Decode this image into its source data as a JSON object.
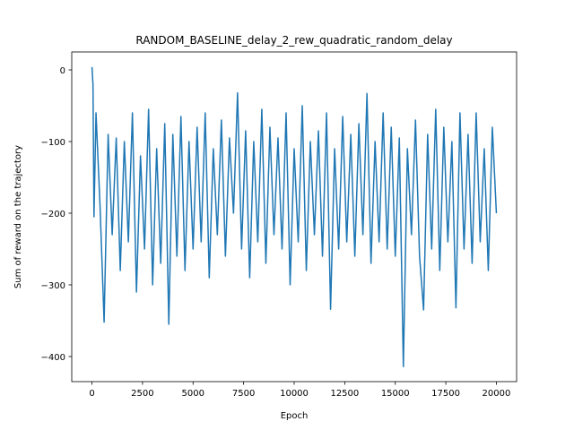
{
  "chart_data": {
    "type": "line",
    "title": "RANDOM_BASELINE_delay_2_rew_quadratic_random_delay",
    "xlabel": "Epoch",
    "ylabel": "Sum of reward on the trajectory",
    "color": "#1f77b4",
    "x": [
      0,
      50,
      100,
      200,
      400,
      600,
      800,
      1000,
      1200,
      1400,
      1600,
      1800,
      2000,
      2200,
      2400,
      2600,
      2800,
      3000,
      3200,
      3400,
      3600,
      3800,
      4000,
      4200,
      4400,
      4600,
      4800,
      5000,
      5200,
      5400,
      5600,
      5800,
      6000,
      6200,
      6400,
      6600,
      6800,
      7000,
      7200,
      7400,
      7600,
      7800,
      8000,
      8200,
      8400,
      8600,
      8800,
      9000,
      9200,
      9400,
      9600,
      9800,
      10000,
      10200,
      10400,
      10600,
      10800,
      11000,
      11200,
      11400,
      11600,
      11800,
      12000,
      12200,
      12400,
      12600,
      12800,
      13000,
      13200,
      13400,
      13600,
      13800,
      14000,
      14200,
      14400,
      14600,
      14800,
      15000,
      15200,
      15400,
      15600,
      15800,
      16000,
      16200,
      16400,
      16600,
      16800,
      17000,
      17200,
      17400,
      17600,
      17800,
      18000,
      18200,
      18400,
      18600,
      18800,
      19000,
      19200,
      19400,
      19600,
      19800,
      20000
    ],
    "values": [
      4,
      -20,
      -205,
      -60,
      -190,
      -352,
      -90,
      -230,
      -95,
      -280,
      -100,
      -240,
      -60,
      -310,
      -120,
      -250,
      -55,
      -300,
      -110,
      -270,
      -75,
      -355,
      -90,
      -260,
      -65,
      -280,
      -100,
      -250,
      -80,
      -240,
      -60,
      -290,
      -110,
      -230,
      -70,
      -260,
      -95,
      -200,
      -32,
      -250,
      -85,
      -290,
      -100,
      -240,
      -55,
      -270,
      -80,
      -230,
      -95,
      -250,
      -60,
      -300,
      -110,
      -240,
      -50,
      -280,
      -100,
      -230,
      -85,
      -260,
      -60,
      -334,
      -110,
      -250,
      -65,
      -240,
      -90,
      -260,
      -75,
      -230,
      -33,
      -270,
      -100,
      -240,
      -60,
      -250,
      -80,
      -260,
      -95,
      -414,
      -110,
      -230,
      -70,
      -260,
      -335,
      -90,
      -250,
      -55,
      -280,
      -80,
      -240,
      -100,
      -332,
      -60,
      -250,
      -90,
      -270,
      -60,
      -240,
      -110,
      -280,
      -80,
      -200
    ],
    "xlim": [
      -1000,
      21000
    ],
    "ylim": [
      -435,
      25
    ],
    "xticks": [
      0,
      2500,
      5000,
      7500,
      10000,
      12500,
      15000,
      17500,
      20000
    ],
    "yticks": [
      {
        "value": 0,
        "label": "0"
      },
      {
        "value": -100,
        "label": "−100"
      },
      {
        "value": -200,
        "label": "−200"
      },
      {
        "value": -300,
        "label": "−300"
      },
      {
        "value": -400,
        "label": "−400"
      }
    ]
  }
}
